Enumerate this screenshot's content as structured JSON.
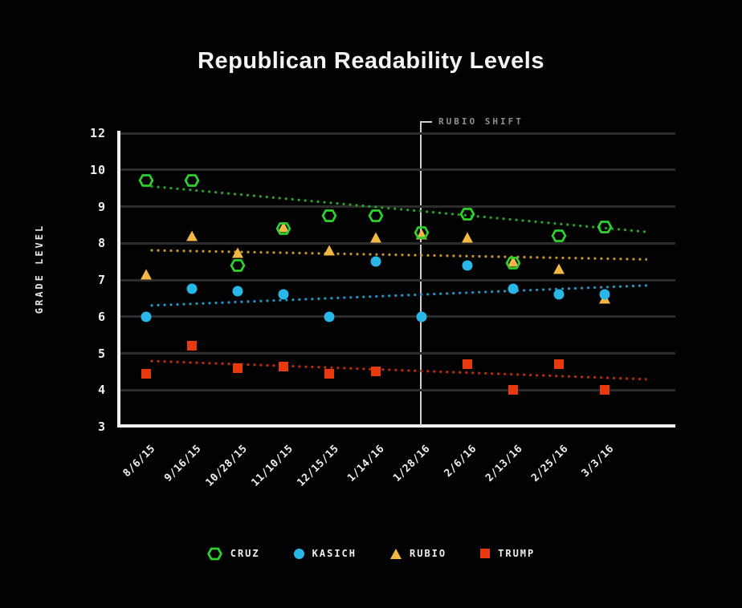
{
  "chart_data": {
    "type": "scatter",
    "title": "Republican Readability Levels",
    "ylabel": "GRADE LEVEL",
    "xlabel": "",
    "x": [
      "8/6/15",
      "9/16/15",
      "10/28/15",
      "11/10/15",
      "12/15/15",
      "1/14/16",
      "1/28/16",
      "2/6/16",
      "2/13/16",
      "2/25/16",
      "3/3/16"
    ],
    "y_tick_labels": [
      "12",
      "10",
      "9",
      "8",
      "7",
      "6",
      "5",
      "4",
      "3"
    ],
    "ylim": [
      3,
      12
    ],
    "grid": true,
    "legend_position": "bottom",
    "annotation": {
      "label": "RUBIO SHIFT",
      "at_x": "1/28/16"
    },
    "series": [
      {
        "name": "CRUZ",
        "marker": "hexagon",
        "color": "#2fd12f",
        "trend_color": "#28a428",
        "values": [
          9.7,
          9.7,
          7.4,
          8.4,
          8.75,
          8.75,
          8.3,
          8.8,
          7.45,
          8.2,
          8.45
        ],
        "trend": [
          9.55,
          8.3
        ]
      },
      {
        "name": "KASICH",
        "marker": "circle",
        "color": "#29b7e8",
        "trend_color": "#1f97c9",
        "values": [
          6.0,
          6.75,
          6.7,
          6.6,
          6.0,
          7.5,
          6.0,
          7.4,
          6.75,
          6.6,
          6.6
        ],
        "trend": [
          6.3,
          6.85
        ]
      },
      {
        "name": "RUBIO",
        "marker": "triangle",
        "color": "#f3b843",
        "trend_color": "#c79430",
        "values": [
          7.15,
          8.2,
          7.75,
          8.45,
          7.8,
          8.15,
          8.25,
          8.15,
          7.5,
          7.3,
          6.5
        ],
        "trend": [
          7.8,
          7.55
        ]
      },
      {
        "name": "TRUMP",
        "marker": "square",
        "color": "#e8390f",
        "trend_color": "#bf2d0d",
        "values": [
          4.45,
          5.2,
          4.6,
          4.65,
          4.45,
          4.5,
          null,
          4.7,
          4.0,
          4.7,
          4.0
        ],
        "trend": [
          4.8,
          4.3
        ]
      }
    ]
  }
}
